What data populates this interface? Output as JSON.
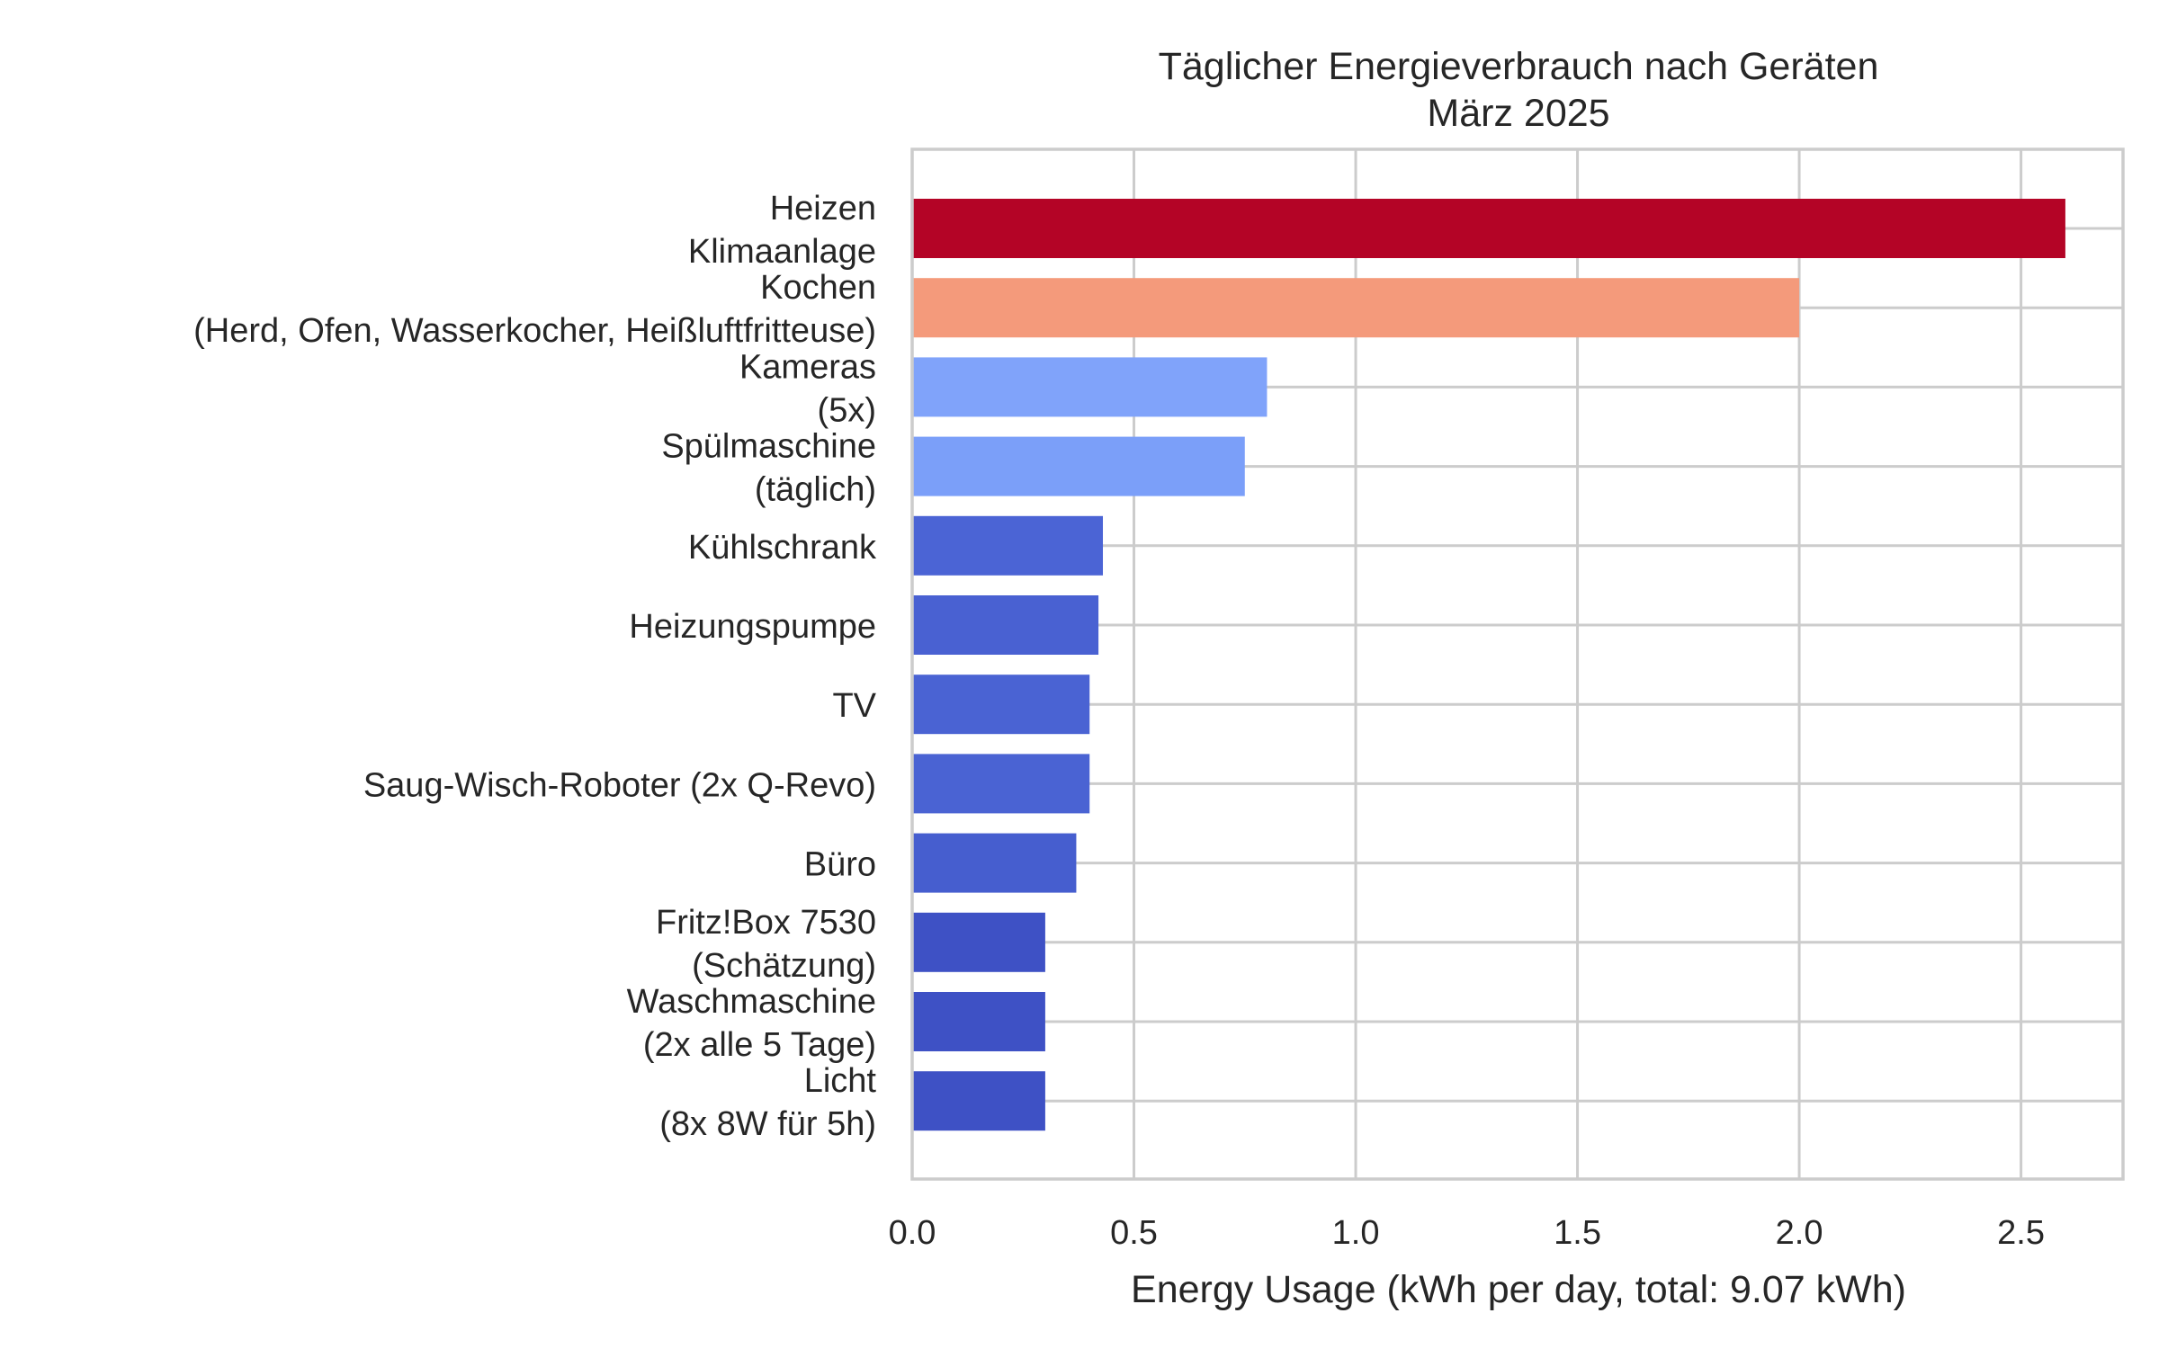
{
  "chart_data": {
    "type": "bar",
    "orientation": "horizontal",
    "title": "Täglicher Energieverbrauch nach Geräten",
    "subtitle": "März 2025",
    "xlabel": "Energy Usage (kWh per day, total: 9.07 kWh)",
    "xlim": [
      0,
      2.73
    ],
    "xticks": [
      "0.0",
      "0.5",
      "1.0",
      "1.5",
      "2.0",
      "2.5"
    ],
    "grid": true,
    "categories": [
      [
        "Heizen",
        "Klimaanlage"
      ],
      [
        "Kochen",
        "(Herd, Ofen, Wasserkocher, Heißluftfritteuse)"
      ],
      [
        "Kameras",
        "(5x)"
      ],
      [
        "Spülmaschine",
        "(täglich)"
      ],
      [
        "Kühlschrank"
      ],
      [
        "Heizungspumpe"
      ],
      [
        "TV"
      ],
      [
        "Saug-Wisch-Roboter (2x Q-Revo)"
      ],
      [
        "Büro"
      ],
      [
        "Fritz!Box 7530",
        "(Schätzung)"
      ],
      [
        "Waschmaschine",
        "(2x alle 5 Tage)"
      ],
      [
        "Licht",
        "(8x 8W für 5h)"
      ]
    ],
    "values": [
      2.6,
      2.0,
      0.8,
      0.75,
      0.43,
      0.42,
      0.4,
      0.4,
      0.37,
      0.3,
      0.3,
      0.3
    ],
    "colors": [
      "#b40426",
      "#f49a7b",
      "#80a3fa",
      "#7b9ff9",
      "#4b64d5",
      "#4961d2",
      "#4a63d3",
      "#4a63d3",
      "#465ecf",
      "#3e51c5",
      "#3e51c5",
      "#3e51c5"
    ]
  }
}
